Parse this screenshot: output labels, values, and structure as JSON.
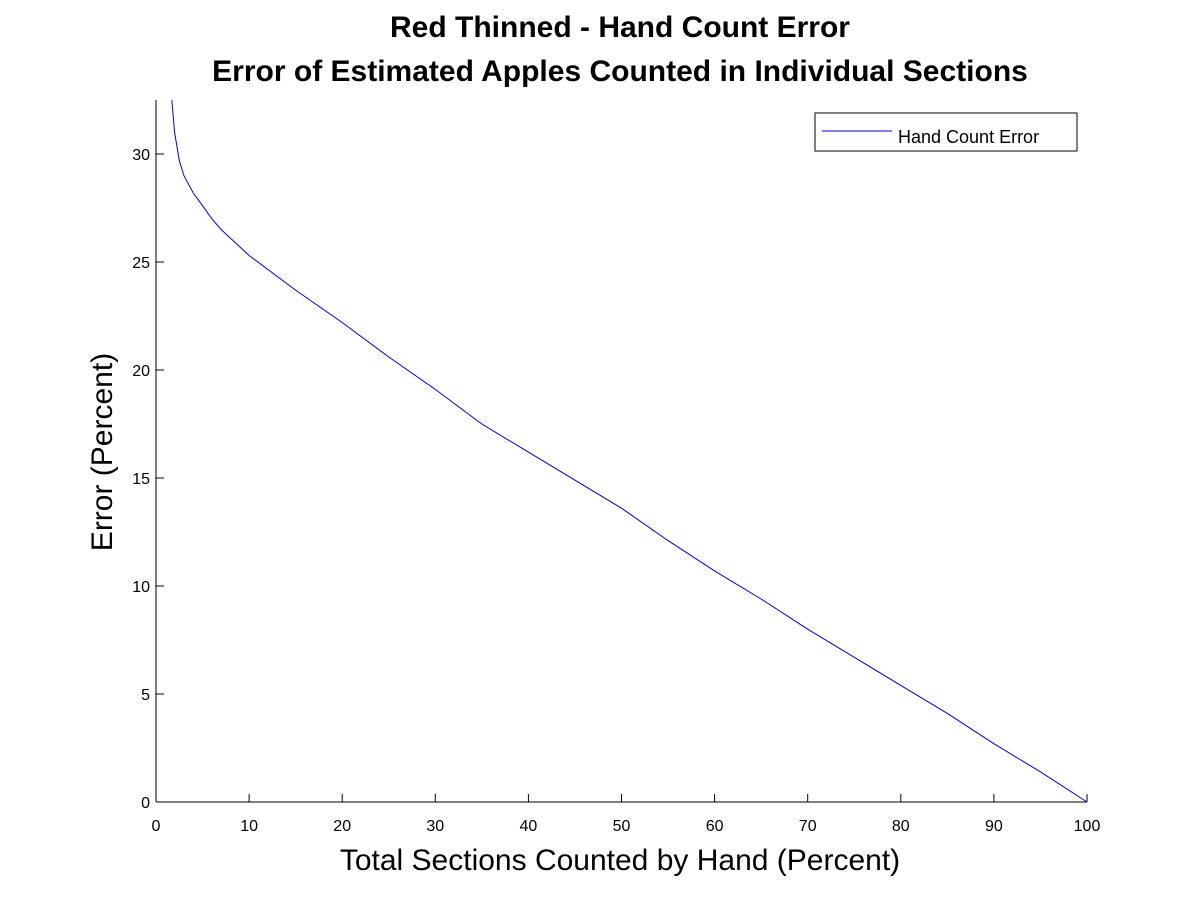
{
  "chart_data": {
    "type": "line",
    "title": "Red Thinned - Hand Count Error",
    "subtitle": "Error of Estimated Apples Counted in Individual Sections",
    "xlabel": "Total Sections Counted by Hand (Percent)",
    "ylabel": "Error (Percent)",
    "xlim": [
      0,
      100
    ],
    "ylim": [
      0,
      32.5
    ],
    "xticks": [
      0,
      10,
      20,
      30,
      40,
      50,
      60,
      70,
      80,
      90,
      100
    ],
    "yticks": [
      0,
      5,
      10,
      15,
      20,
      25,
      30
    ],
    "grid": false,
    "legend_position": "top-right",
    "series": [
      {
        "name": "Hand Count Error",
        "color": "#0000cc",
        "x": [
          1.7,
          2.0,
          2.5,
          3,
          4,
          5,
          6,
          7,
          8,
          10,
          15,
          20,
          25,
          30,
          35,
          40,
          45,
          50,
          55,
          60,
          65,
          70,
          75,
          80,
          85,
          90,
          95,
          100
        ],
        "y": [
          32.5,
          31.0,
          29.7,
          29.0,
          28.2,
          27.6,
          27.0,
          26.5,
          26.1,
          25.3,
          23.7,
          22.2,
          20.6,
          19.1,
          17.5,
          16.2,
          14.9,
          13.6,
          12.1,
          10.7,
          9.4,
          8.0,
          6.7,
          5.4,
          4.1,
          2.7,
          1.4,
          0
        ]
      }
    ]
  }
}
